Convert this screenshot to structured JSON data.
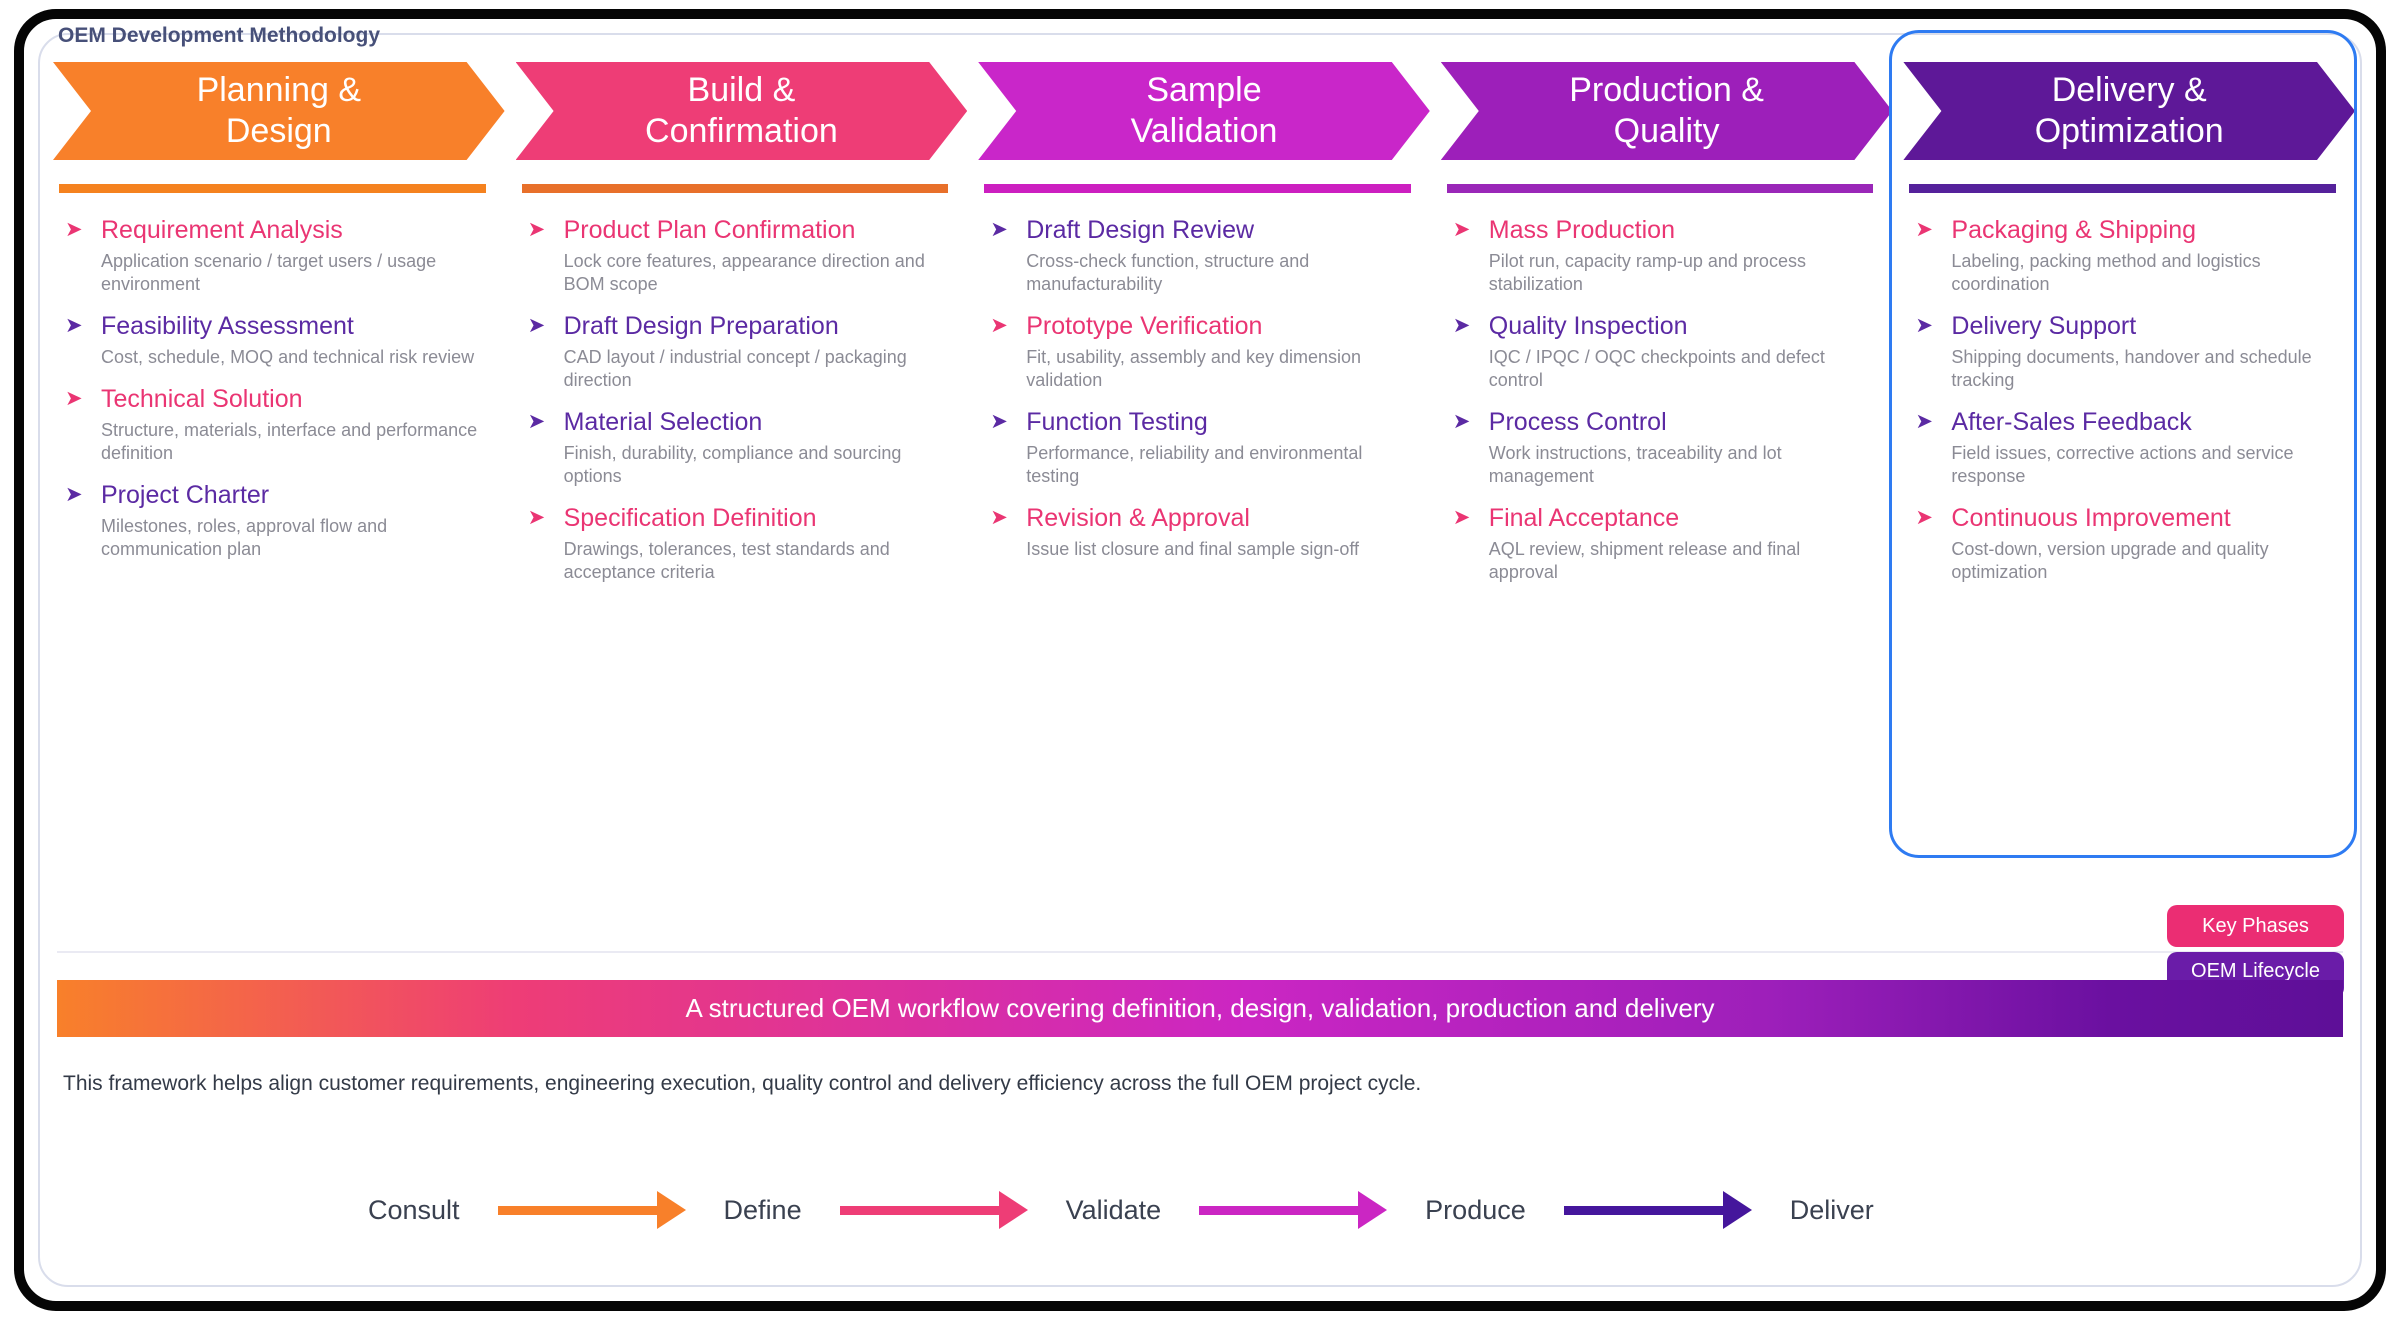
{
  "page": {
    "title": "OEM Development Methodology"
  },
  "bullet_glyph": "➤",
  "accent_colors": {
    "pink": "#EA3573",
    "purple": "#5B2AA3",
    "description_gray": "#8B8B95",
    "highlight_border_blue": "#2E7BF2"
  },
  "phases": [
    {
      "name_line1": "Planning &",
      "name_line2": "Design",
      "color": "#F8802A",
      "underline_color": "#F5821F",
      "items": [
        {
          "title": "Requirement Analysis",
          "desc": "Application scenario / target users / usage environment",
          "accent": "pink"
        },
        {
          "title": "Feasibility Assessment",
          "desc": "Cost, schedule, MOQ and technical risk review",
          "accent": "purple"
        },
        {
          "title": "Technical Solution",
          "desc": "Structure, materials, interface and performance definition",
          "accent": "pink"
        },
        {
          "title": "Project Charter",
          "desc": "Milestones, roles, approval flow and communication plan",
          "accent": "purple"
        }
      ]
    },
    {
      "name_line1": "Build &",
      "name_line2": "Confirmation",
      "color": "#EE3D76",
      "underline_color": "#E8702A",
      "items": [
        {
          "title": "Product Plan Confirmation",
          "desc": "Lock core features, appearance direction and BOM scope",
          "accent": "pink"
        },
        {
          "title": "Draft Design Preparation",
          "desc": "CAD layout / industrial concept / packaging direction",
          "accent": "purple"
        },
        {
          "title": "Material Selection",
          "desc": "Finish, durability, compliance and sourcing options",
          "accent": "purple"
        },
        {
          "title": "Specification Definition",
          "desc": "Drawings, tolerances, test standards and acceptance criteria",
          "accent": "pink"
        }
      ]
    },
    {
      "name_line1": "Sample",
      "name_line2": "Validation",
      "color": "#C926C9",
      "underline_color": "#CC1FC0",
      "items": [
        {
          "title": "Draft Design Review",
          "desc": "Cross-check function, structure and manufacturability",
          "accent": "purple"
        },
        {
          "title": "Prototype Verification",
          "desc": "Fit, usability, assembly and key dimension validation",
          "accent": "pink"
        },
        {
          "title": "Function Testing",
          "desc": "Performance, reliability and environmental testing",
          "accent": "purple"
        },
        {
          "title": "Revision & Approval",
          "desc": "Issue list closure and final sample sign-off",
          "accent": "pink"
        }
      ]
    },
    {
      "name_line1": "Production &",
      "name_line2": "Quality",
      "color": "#9D1FBA",
      "underline_color": "#9A27B8",
      "items": [
        {
          "title": "Mass Production",
          "desc": "Pilot run, capacity ramp-up and process stabilization",
          "accent": "pink"
        },
        {
          "title": "Quality Inspection",
          "desc": "IQC / IPQC / OQC checkpoints and defect control",
          "accent": "purple"
        },
        {
          "title": "Process Control",
          "desc": "Work instructions, traceability and lot management",
          "accent": "purple"
        },
        {
          "title": "Final Acceptance",
          "desc": "AQL review, shipment release and final approval",
          "accent": "pink"
        }
      ]
    },
    {
      "name_line1": "Delivery &",
      "name_line2": "Optimization",
      "color": "#5E1898",
      "underline_color": "#55219B",
      "items": [
        {
          "title": "Packaging & Shipping",
          "desc": "Labeling, packing method and logistics coordination",
          "accent": "pink"
        },
        {
          "title": "Delivery Support",
          "desc": "Shipping documents, handover and schedule tracking",
          "accent": "purple"
        },
        {
          "title": "After-Sales Feedback",
          "desc": "Field issues, corrective actions and service response",
          "accent": "purple"
        },
        {
          "title": "Continuous Improvement",
          "desc": "Cost-down, version upgrade and quality optimization",
          "accent": "pink"
        }
      ]
    }
  ],
  "legend": {
    "key_phases_label": "Key Phases",
    "key_phases_color": "#EB2D73",
    "oem_lifecycle_label": "OEM Lifecycle",
    "oem_lifecycle_color": "#6A1CA8"
  },
  "banner": {
    "text": "A structured OEM workflow covering definition, design, validation, production and delivery"
  },
  "subtitle": "This framework helps align customer requirements, engineering execution, quality control and delivery efficiency across the full OEM project cycle.",
  "flow": {
    "steps": [
      "Consult",
      "Define",
      "Validate",
      "Produce",
      "Deliver"
    ],
    "arrow_colors": [
      "#F8802A",
      "#EE3D76",
      "#CB26C3",
      "#45169C"
    ]
  }
}
